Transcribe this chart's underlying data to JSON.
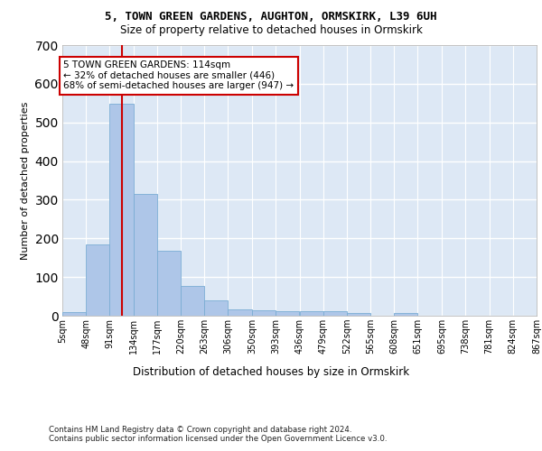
{
  "title1": "5, TOWN GREEN GARDENS, AUGHTON, ORMSKIRK, L39 6UH",
  "title2": "Size of property relative to detached houses in Ormskirk",
  "xlabel": "Distribution of detached houses by size in Ormskirk",
  "ylabel": "Number of detached properties",
  "bar_color": "#aec6e8",
  "bar_edge_color": "#7aadd4",
  "background_color": "#dde8f5",
  "grid_color": "#ffffff",
  "bins": [
    5,
    48,
    91,
    134,
    177,
    220,
    263,
    306,
    350,
    393,
    436,
    479,
    522,
    565,
    608,
    651,
    695,
    738,
    781,
    824,
    867
  ],
  "bin_labels": [
    "5sqm",
    "48sqm",
    "91sqm",
    "134sqm",
    "177sqm",
    "220sqm",
    "263sqm",
    "306sqm",
    "350sqm",
    "393sqm",
    "436sqm",
    "479sqm",
    "522sqm",
    "565sqm",
    "608sqm",
    "651sqm",
    "695sqm",
    "738sqm",
    "781sqm",
    "824sqm",
    "867sqm"
  ],
  "counts": [
    9,
    185,
    548,
    316,
    167,
    77,
    39,
    16,
    15,
    11,
    12,
    12,
    8,
    0,
    7,
    0,
    0,
    0,
    0,
    0
  ],
  "vline_x": 114,
  "annotation_title": "5 TOWN GREEN GARDENS: 114sqm",
  "annotation_line1": "← 32% of detached houses are smaller (446)",
  "annotation_line2": "68% of semi-detached houses are larger (947) →",
  "ylim": [
    0,
    700
  ],
  "yticks": [
    0,
    100,
    200,
    300,
    400,
    500,
    600,
    700
  ],
  "footer1": "Contains HM Land Registry data © Crown copyright and database right 2024.",
  "footer2": "Contains public sector information licensed under the Open Government Licence v3.0.",
  "annotation_box_color": "#ffffff",
  "annotation_box_edge": "#cc0000",
  "vline_color": "#cc0000"
}
